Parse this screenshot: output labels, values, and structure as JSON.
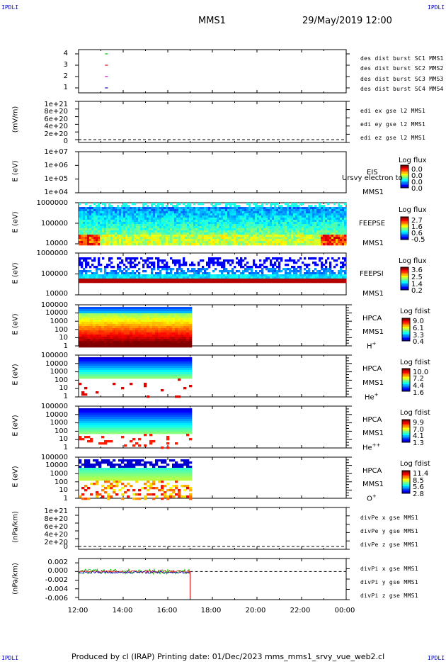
{
  "corner_marks": {
    "left": "IPDLI",
    "right": "IPDLI"
  },
  "header": {
    "spacecraft": "MMS1",
    "datetime": "29/May/2019 12:00"
  },
  "footer": {
    "text": "Produced by cl (IRAP)   Printing date: 01/Dec/2023   mms_mms1_srvy_vue_web2.cl"
  },
  "x_axis": {
    "ticks": [
      "12:00",
      "14:00",
      "16:00",
      "18:00",
      "20:00",
      "22:00",
      "00:00"
    ]
  },
  "colors": {
    "red": "#e00000",
    "green": "#00c000",
    "blue": "#0000c0",
    "magenta": "#c000c0",
    "cyan": "#00c0c0"
  },
  "chart_data": [
    {
      "type": "line",
      "name": "burst",
      "ytick_labels": [
        "4",
        "3",
        "2",
        "1"
      ],
      "legend": [
        {
          "label": "des dist burst SC1 MMS1",
          "color": "#0000c0"
        },
        {
          "label": "des dist burst SC2 MMS2",
          "color": "#c000c0"
        },
        {
          "label": "des dist burst SC3 MMS3",
          "color": "#e00000"
        },
        {
          "label": "des dist burst SC4 MMS4",
          "color": "#00c000"
        }
      ],
      "ylim": [
        0.5,
        4.5
      ],
      "points": [
        {
          "time": "13:15",
          "y": 4,
          "color": "#00c000"
        },
        {
          "time": "13:15",
          "y": 3,
          "color": "#e00000"
        },
        {
          "time": "13:15",
          "y": 2,
          "color": "#c000c0"
        },
        {
          "time": "13:15",
          "y": 1,
          "color": "#0000c0"
        }
      ]
    },
    {
      "type": "line",
      "name": "edi",
      "ylabel": "(mV/m)",
      "ytick_labels": [
        "1e+21",
        "8e+20",
        "6e+20",
        "4e+20",
        "2e+20",
        "0"
      ],
      "legend": [
        {
          "label": "edi ex gse l2 MMS1",
          "color": "#e00000"
        },
        {
          "label": "edi ey gse l2 MMS1",
          "color": "#00c000"
        },
        {
          "label": "edi ez gse l2 MMS1",
          "color": "#0000c0"
        }
      ],
      "zero_line": true
    },
    {
      "type": "heatmap",
      "name": "eis",
      "ylabel": "E (eV)",
      "ytick_labels": [
        "1e+07",
        "1e+06",
        "1e+05",
        "1e+04"
      ],
      "right_labels": [
        "EIS",
        "MMS1"
      ],
      "overlay_text": "Ursvy electron to",
      "colorbar": {
        "title": "Log flux",
        "ticks": [
          "0.0",
          "0.0",
          "0.0",
          "0.0"
        ]
      }
    },
    {
      "type": "heatmap",
      "name": "feepse",
      "ylabel": "E (eV)",
      "ytick_labels": [
        "1000000",
        "100000",
        "10000"
      ],
      "right_labels": [
        "FEEPSE",
        "MMS1"
      ],
      "colorbar": {
        "title": "Log flux",
        "ticks": [
          "2.7",
          "1.6",
          "0.6",
          "-0.5"
        ]
      },
      "time_range": [
        "12:00",
        "00:00"
      ]
    },
    {
      "type": "heatmap",
      "name": "feepsi",
      "ylabel": "E (eV)",
      "ytick_labels": [
        "1000000",
        "100000",
        "10000"
      ],
      "right_labels": [
        "FEEPSI",
        "MMS1"
      ],
      "colorbar": {
        "title": "Log flux",
        "ticks": [
          "3.6",
          "2.5",
          "1.4",
          "0.2"
        ]
      },
      "time_range": [
        "12:00",
        "00:00"
      ]
    },
    {
      "type": "heatmap",
      "name": "hpca-h",
      "ylabel": "E (eV)",
      "ytick_labels": [
        "100000",
        "10000",
        "1000",
        "100",
        "10",
        "1"
      ],
      "right_labels": [
        "HPCA",
        "MMS1"
      ],
      "species": {
        "base": "H",
        "sup": "+"
      },
      "colorbar": {
        "title": "Log fdist",
        "ticks": [
          "9.0",
          "6.1",
          "3.3",
          "0.4"
        ]
      },
      "time_range": [
        "12:00",
        "17:00"
      ]
    },
    {
      "type": "heatmap",
      "name": "hpca-he",
      "ylabel": "E (eV)",
      "ytick_labels": [
        "100000",
        "10000",
        "1000",
        "100",
        "10",
        "1"
      ],
      "right_labels": [
        "HPCA",
        "MMS1"
      ],
      "species": {
        "base": "He",
        "sup": "+"
      },
      "colorbar": {
        "title": "Log fdist",
        "ticks": [
          "10.0",
          "7.2",
          "4.4",
          "1.6"
        ]
      },
      "time_range": [
        "12:00",
        "17:00"
      ]
    },
    {
      "type": "heatmap",
      "name": "hpca-hepp",
      "ylabel": "E (eV)",
      "ytick_labels": [
        "100000",
        "10000",
        "1000",
        "100",
        "10",
        "1"
      ],
      "right_labels": [
        "HPCA",
        "MMS1"
      ],
      "species": {
        "base": "He",
        "sup": "++"
      },
      "colorbar": {
        "title": "Log fdist",
        "ticks": [
          "9.9",
          "7.0",
          "4.1",
          "1.3"
        ]
      },
      "time_range": [
        "12:00",
        "17:00"
      ]
    },
    {
      "type": "heatmap",
      "name": "hpca-o",
      "ylabel": "E (eV)",
      "ytick_labels": [
        "100000",
        "10000",
        "1000",
        "100",
        "10",
        "1"
      ],
      "right_labels": [
        "HPCA",
        "MMS1"
      ],
      "species": {
        "base": "O",
        "sup": "+"
      },
      "colorbar": {
        "title": "Log fdist",
        "ticks": [
          "11.4",
          "8.5",
          "5.6",
          "2.8"
        ]
      },
      "time_range": [
        "12:00",
        "17:00"
      ]
    },
    {
      "type": "line",
      "name": "divpe",
      "ylabel": "(nPa/km)",
      "ytick_labels": [
        "1e+21",
        "8e+20",
        "6e+20",
        "4e+20",
        "2e+20",
        "0"
      ],
      "legend": [
        {
          "label": "divPe x gse MMS1",
          "color": "#e00000"
        },
        {
          "label": "divPe y gse MMS1",
          "color": "#00c000"
        },
        {
          "label": "divPe z gse MMS1",
          "color": "#0000c0"
        }
      ],
      "zero_line": true
    },
    {
      "type": "line",
      "name": "divpi",
      "ylabel": "(nPa/km)",
      "ytick_labels": [
        "0.002",
        "0.000",
        "-0.002",
        "-0.004",
        "-0.006"
      ],
      "ylim": [
        -0.0065,
        0.003
      ],
      "legend": [
        {
          "label": "divPi x gse MMS1",
          "color": "#e00000"
        },
        {
          "label": "divPi y gse MMS1",
          "color": "#00c000"
        },
        {
          "label": "divPi z gse MMS1",
          "color": "#0000c0"
        }
      ],
      "zero_line": true,
      "time_range": [
        "12:00",
        "17:00"
      ]
    }
  ]
}
